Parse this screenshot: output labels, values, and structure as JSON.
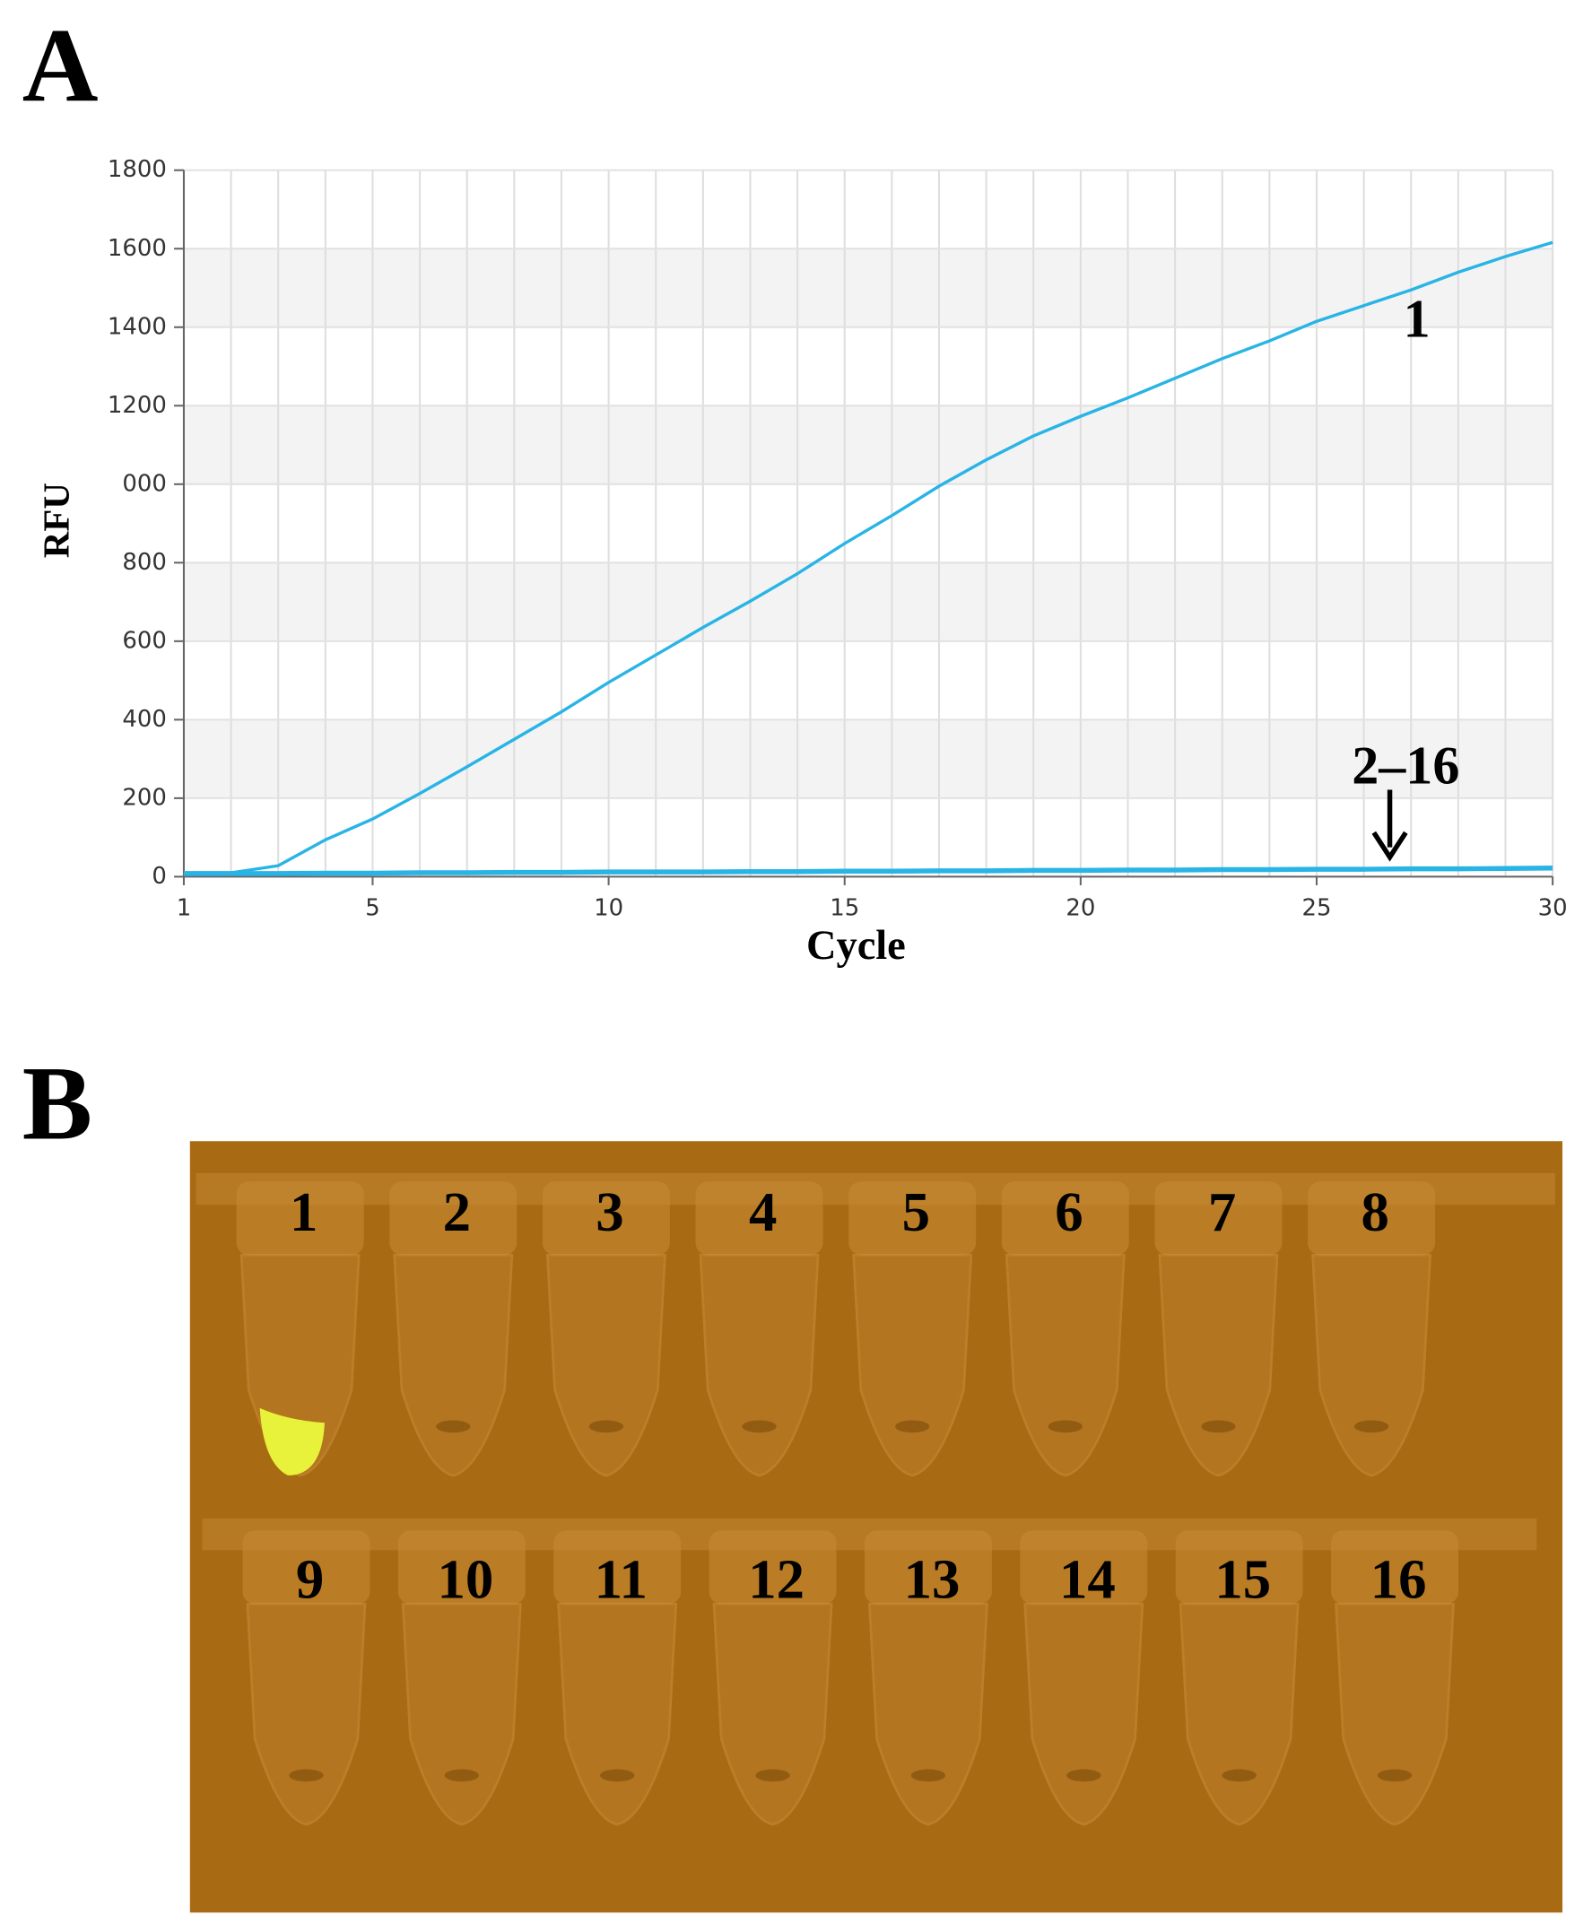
{
  "panel_a": {
    "label": "A"
  },
  "chart_data": {
    "type": "line",
    "x": [
      1,
      2,
      3,
      4,
      5,
      6,
      7,
      8,
      9,
      10,
      11,
      12,
      13,
      14,
      15,
      16,
      17,
      18,
      19,
      20,
      21,
      22,
      23,
      24,
      25,
      26,
      27,
      28,
      29,
      30
    ],
    "series": [
      {
        "name": "1",
        "color": "#29b4e6",
        "values": [
          10,
          10,
          28,
          94,
          147,
          212,
          280,
          350,
          420,
          495,
          565,
          635,
          702,
          772,
          849,
          920,
          995,
          1062,
          1123,
          1173,
          1220,
          1270,
          1320,
          1365,
          1415,
          1455,
          1495,
          1540,
          1580,
          1616
        ]
      },
      {
        "name": "2–16",
        "color": "#29b4e6",
        "values": [
          8,
          8,
          8,
          9,
          9,
          10,
          10,
          11,
          11,
          12,
          12,
          12,
          13,
          13,
          14,
          14,
          15,
          15,
          16,
          16,
          17,
          17,
          18,
          18,
          19,
          19,
          20,
          20,
          21,
          22
        ]
      }
    ],
    "xlabel": "Cycle",
    "ylabel": "RFU",
    "xlim": [
      1,
      30
    ],
    "xticks": [
      1,
      5,
      10,
      15,
      20,
      25,
      30
    ],
    "ylim": [
      0,
      1800
    ],
    "yticks": [
      0,
      200,
      400,
      600,
      800,
      {
        "value": 1000,
        "label": "000"
      },
      1200,
      1400,
      1600,
      1800
    ],
    "grid": true
  },
  "panel_b": {
    "label": "B",
    "tube_labels": [
      "1",
      "2",
      "3",
      "4",
      "5",
      "6",
      "7",
      "8",
      "9",
      "10",
      "11",
      "12",
      "13",
      "14",
      "15",
      "16"
    ]
  }
}
